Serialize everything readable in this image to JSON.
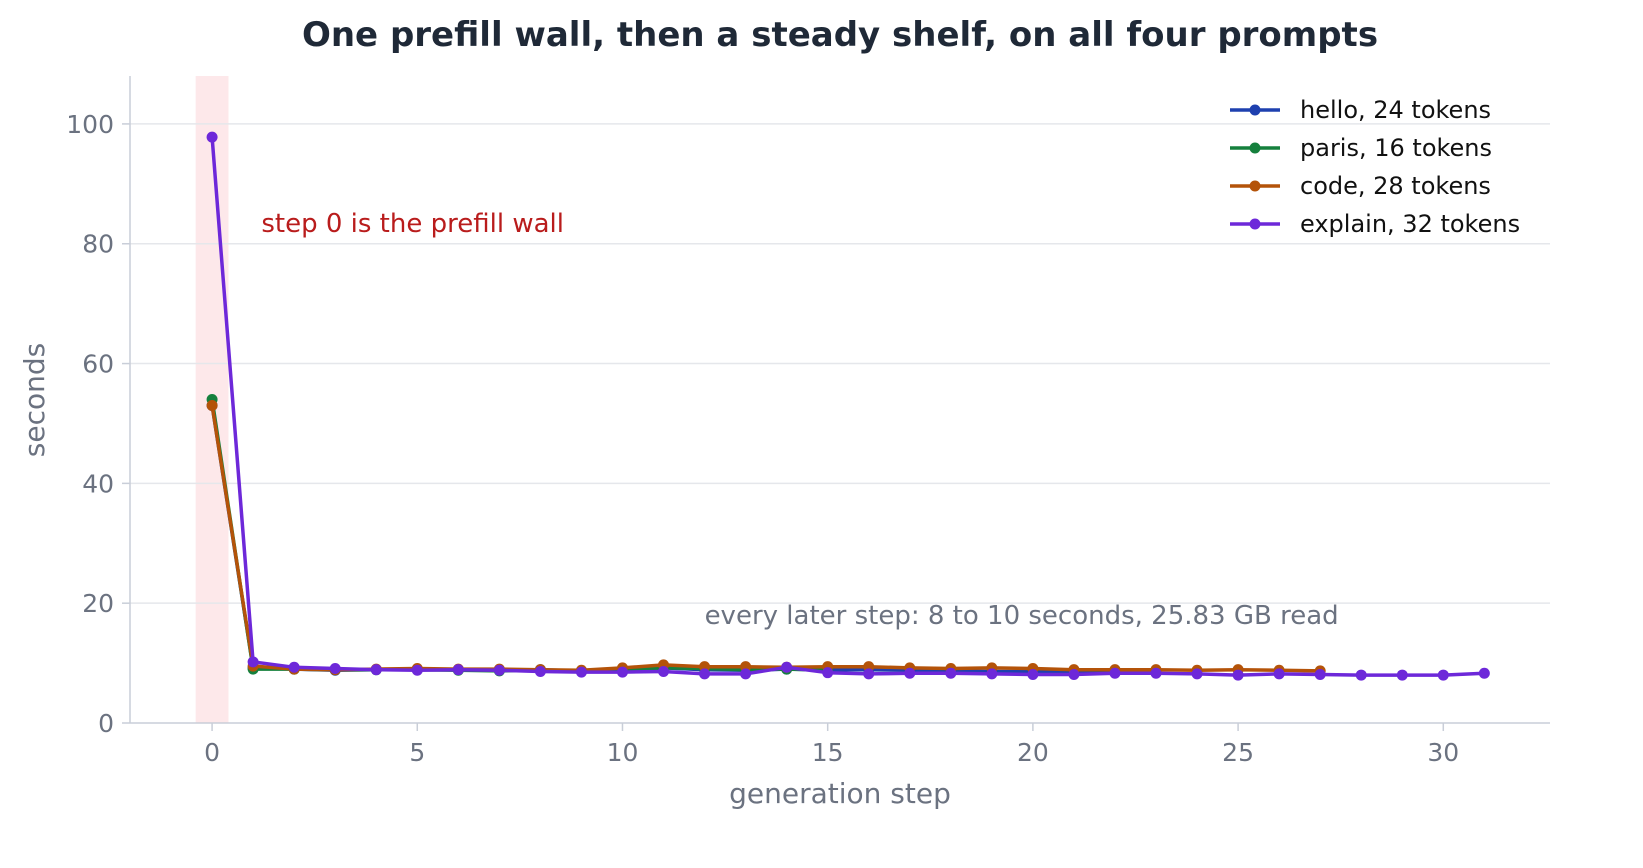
{
  "chart_data": {
    "type": "line",
    "title": "One prefill wall, then a steady shelf, on all four prompts",
    "xlabel": "generation step",
    "ylabel": "seconds",
    "xlim": [
      -2,
      32.6
    ],
    "ylim": [
      0,
      108
    ],
    "xticks": [
      0,
      5,
      10,
      15,
      20,
      25,
      30
    ],
    "yticks": [
      0,
      20,
      40,
      60,
      80,
      100
    ],
    "grid": "horizontal",
    "legend_position": "top-right",
    "highlight_span": [
      -0.4,
      0.4
    ],
    "annotations": [
      {
        "text": "step 0 is the prefill wall",
        "x": 1.2,
        "y": 82,
        "color": "#b91c1c"
      },
      {
        "text": "every later step: 8 to 10 seconds, 25.83 GB read",
        "x": 12,
        "y": 16.5,
        "color": "#6b7280"
      }
    ],
    "series": [
      {
        "name": "hello, 24 tokens",
        "color": "#1e40af",
        "x": [
          0,
          1,
          2,
          3,
          4,
          5,
          6,
          7,
          8,
          9,
          10,
          11,
          12,
          13,
          14,
          15,
          16,
          17,
          18,
          19,
          20,
          21,
          22,
          23
        ],
        "y": [
          53.0,
          9.2,
          9.0,
          8.8,
          8.9,
          9.0,
          8.9,
          8.8,
          8.9,
          8.7,
          8.9,
          9.2,
          8.9,
          8.8,
          9.0,
          8.9,
          8.9,
          8.8,
          8.7,
          8.6,
          8.6,
          8.5,
          8.6,
          8.5
        ]
      },
      {
        "name": "paris, 16 tokens",
        "color": "#15803d",
        "x": [
          0,
          1,
          2,
          3,
          4,
          5,
          6,
          7,
          8,
          9,
          10,
          11,
          12,
          13,
          14,
          15
        ],
        "y": [
          54.0,
          9.0,
          9.0,
          8.9,
          8.9,
          8.9,
          8.8,
          8.7,
          8.8,
          8.6,
          8.8,
          9.2,
          9.1,
          8.9,
          9.0,
          8.8
        ]
      },
      {
        "name": "code, 28 tokens",
        "color": "#b45309",
        "x": [
          0,
          1,
          2,
          3,
          4,
          5,
          6,
          7,
          8,
          9,
          10,
          11,
          12,
          13,
          14,
          15,
          16,
          17,
          18,
          19,
          20,
          21,
          22,
          23,
          24,
          25,
          26,
          27
        ],
        "y": [
          53.0,
          9.5,
          9.0,
          8.9,
          9.0,
          9.1,
          9.0,
          9.0,
          8.9,
          8.8,
          9.2,
          9.7,
          9.4,
          9.4,
          9.3,
          9.4,
          9.4,
          9.2,
          9.1,
          9.2,
          9.1,
          8.9,
          8.9,
          8.9,
          8.8,
          8.9,
          8.8,
          8.7
        ]
      },
      {
        "name": "explain, 32 tokens",
        "color": "#6d28d9",
        "x": [
          0,
          1,
          2,
          3,
          4,
          5,
          6,
          7,
          8,
          9,
          10,
          11,
          12,
          13,
          14,
          15,
          16,
          17,
          18,
          19,
          20,
          21,
          22,
          23,
          24,
          25,
          26,
          27,
          28,
          29,
          30,
          31
        ],
        "y": [
          97.8,
          10.2,
          9.3,
          9.1,
          8.9,
          8.8,
          8.9,
          8.8,
          8.6,
          8.5,
          8.5,
          8.6,
          8.2,
          8.2,
          9.3,
          8.4,
          8.2,
          8.3,
          8.3,
          8.2,
          8.1,
          8.1,
          8.3,
          8.3,
          8.2,
          8.0,
          8.2,
          8.1,
          8.0,
          8.0,
          8.0,
          8.3
        ]
      }
    ]
  }
}
